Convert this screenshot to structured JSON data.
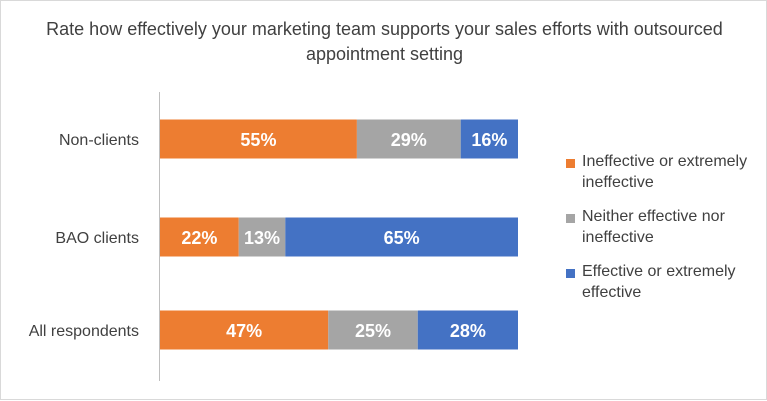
{
  "chart_data": {
    "type": "bar",
    "orientation": "horizontal",
    "stacked": "percent",
    "title": "Rate how effectively your marketing team supports your sales efforts with outsourced appointment setting",
    "categories": [
      "Non-clients",
      "BAO clients",
      "All respondents"
    ],
    "series": [
      {
        "name": "Ineffective or extremely ineffective",
        "color": "#ED7D31",
        "values": [
          55,
          22,
          47
        ],
        "labels": [
          "55%",
          "22%",
          "47%"
        ]
      },
      {
        "name": "Neither effective nor ineffective",
        "color": "#A5A5A5",
        "values": [
          29,
          13,
          25
        ],
        "labels": [
          "29%",
          "13%",
          "25%"
        ]
      },
      {
        "name": "Effective or extremely effective",
        "color": "#4472C4",
        "values": [
          16,
          65,
          28
        ],
        "labels": [
          "16%",
          "65%",
          "28%"
        ]
      }
    ],
    "xlim": [
      0,
      100
    ],
    "grid": false,
    "legend_position": "right"
  }
}
